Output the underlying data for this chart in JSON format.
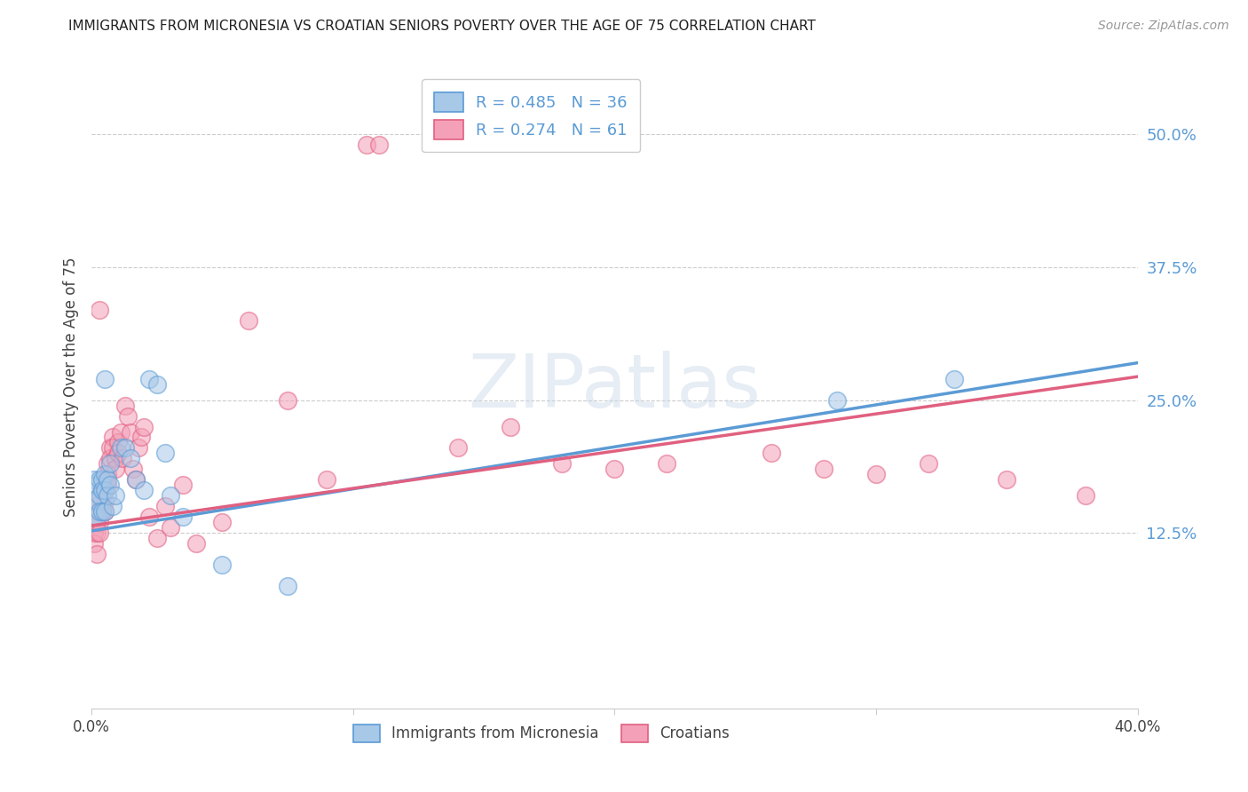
{
  "title": "IMMIGRANTS FROM MICRONESIA VS CROATIAN SENIORS POVERTY OVER THE AGE OF 75 CORRELATION CHART",
  "source": "Source: ZipAtlas.com",
  "ylabel": "Seniors Poverty Over the Age of 75",
  "right_yticks": [
    "50.0%",
    "37.5%",
    "25.0%",
    "12.5%"
  ],
  "right_ytick_vals": [
    0.5,
    0.375,
    0.25,
    0.125
  ],
  "xlim": [
    0.0,
    0.4
  ],
  "ylim": [
    -0.04,
    0.565
  ],
  "legend1_label": "R = 0.485   N = 36",
  "legend2_label": "R = 0.274   N = 61",
  "color_blue": "#a8c8e8",
  "color_pink": "#f4a0b8",
  "line_color_blue": "#5b9bd5",
  "line_color_pink": "#e06080",
  "watermark": "ZIPatlas",
  "blue_line": [
    0.0,
    0.127,
    0.4,
    0.285
  ],
  "pink_line": [
    0.0,
    0.132,
    0.4,
    0.272
  ],
  "blue_x": [
    0.001,
    0.001,
    0.001,
    0.002,
    0.002,
    0.002,
    0.003,
    0.003,
    0.003,
    0.004,
    0.004,
    0.004,
    0.005,
    0.005,
    0.005,
    0.006,
    0.006,
    0.007,
    0.007,
    0.008,
    0.009,
    0.011,
    0.013,
    0.015,
    0.017,
    0.02,
    0.022,
    0.025,
    0.028,
    0.03,
    0.035,
    0.05,
    0.075,
    0.285,
    0.33,
    0.005
  ],
  "blue_y": [
    0.175,
    0.155,
    0.14,
    0.17,
    0.155,
    0.14,
    0.175,
    0.16,
    0.145,
    0.175,
    0.165,
    0.145,
    0.18,
    0.165,
    0.145,
    0.175,
    0.16,
    0.19,
    0.17,
    0.15,
    0.16,
    0.205,
    0.205,
    0.195,
    0.175,
    0.165,
    0.27,
    0.265,
    0.2,
    0.16,
    0.14,
    0.095,
    0.075,
    0.25,
    0.27,
    0.27
  ],
  "pink_x": [
    0.001,
    0.001,
    0.002,
    0.002,
    0.002,
    0.003,
    0.003,
    0.003,
    0.003,
    0.004,
    0.004,
    0.004,
    0.005,
    0.005,
    0.005,
    0.005,
    0.006,
    0.006,
    0.006,
    0.007,
    0.007,
    0.008,
    0.008,
    0.009,
    0.009,
    0.01,
    0.01,
    0.011,
    0.012,
    0.013,
    0.014,
    0.015,
    0.016,
    0.017,
    0.018,
    0.019,
    0.02,
    0.022,
    0.025,
    0.028,
    0.03,
    0.035,
    0.04,
    0.05,
    0.06,
    0.075,
    0.09,
    0.105,
    0.11,
    0.14,
    0.16,
    0.18,
    0.2,
    0.22,
    0.26,
    0.28,
    0.3,
    0.32,
    0.35,
    0.38,
    0.003
  ],
  "pink_y": [
    0.125,
    0.115,
    0.135,
    0.125,
    0.105,
    0.155,
    0.145,
    0.135,
    0.125,
    0.165,
    0.155,
    0.145,
    0.175,
    0.165,
    0.155,
    0.145,
    0.19,
    0.18,
    0.17,
    0.205,
    0.195,
    0.215,
    0.205,
    0.195,
    0.185,
    0.21,
    0.2,
    0.22,
    0.195,
    0.245,
    0.235,
    0.22,
    0.185,
    0.175,
    0.205,
    0.215,
    0.225,
    0.14,
    0.12,
    0.15,
    0.13,
    0.17,
    0.115,
    0.135,
    0.325,
    0.25,
    0.175,
    0.49,
    0.49,
    0.205,
    0.225,
    0.19,
    0.185,
    0.19,
    0.2,
    0.185,
    0.18,
    0.19,
    0.175,
    0.16,
    0.335
  ]
}
